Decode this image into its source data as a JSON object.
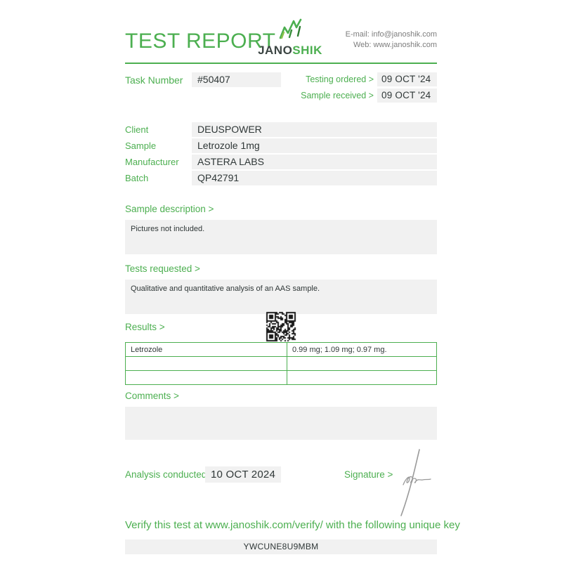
{
  "header": {
    "title": "TEST REPORT",
    "brand": {
      "name_primary": "JANO",
      "name_secondary": "SHIK"
    },
    "contact": {
      "email_line": "E-mail: info@janoshik.com",
      "web_line": "Web: www.janoshik.com"
    }
  },
  "task": {
    "label": "Task Number",
    "number": "#50407",
    "testing_ordered_label": "Testing ordered >",
    "testing_ordered": "09 OCT '24",
    "sample_received_label": "Sample received >",
    "sample_received": "09 OCT '24"
  },
  "info": {
    "rows": [
      {
        "label": "Client",
        "value": "DEUSPOWER"
      },
      {
        "label": "Sample",
        "value": "Letrozole 1mg"
      },
      {
        "label": "Manufacturer",
        "value": "ASTERA LABS"
      },
      {
        "label": "Batch",
        "value": "QP42791"
      }
    ]
  },
  "sections": {
    "sample_description_label": "Sample description >",
    "sample_description": "Pictures not included.",
    "tests_requested_label": "Tests requested >",
    "tests_requested": "Qualitative and quantitative analysis of an AAS sample.",
    "results_label": "Results >",
    "comments_label": "Comments >",
    "comments": ""
  },
  "results_table": {
    "rows": [
      {
        "substance": "Letrozole",
        "result": "0.99 mg; 1.09 mg; 0.97 mg."
      },
      {
        "substance": "",
        "result": ""
      },
      {
        "substance": "",
        "result": ""
      }
    ]
  },
  "footer": {
    "analysis_label": "Analysis conducted >",
    "analysis_date": "10 OCT 2024",
    "signature_label": "Signature >",
    "verify_text": "Verify this test at www.janoshik.com/verify/ with the following unique key",
    "unique_key": "YWCUNE8U9MBM"
  },
  "colors": {
    "accent_green": "#4caf50",
    "dark_text": "#2f3737",
    "gray_box": "#f1f1f1",
    "gray_text": "#7d7d7d",
    "logo_dark": "#3c4543",
    "signature_gray": "#999999"
  }
}
